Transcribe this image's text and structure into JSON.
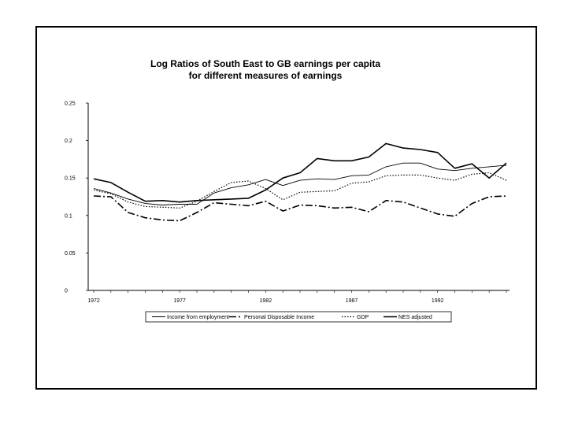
{
  "chart_data": {
    "type": "line",
    "title": [
      "Log Ratios of South East to GB earnings per capita",
      "for different measures of earnings"
    ],
    "xlabel": "",
    "ylabel": "",
    "xlim": [
      1972,
      1996
    ],
    "ylim": [
      0,
      0.25
    ],
    "y_ticks": [
      0,
      0.05,
      0.1,
      0.15,
      0.2,
      0.25
    ],
    "y_tick_labels": [
      "0",
      "0.05",
      "0.1",
      "0.15",
      "0.2",
      "0.25"
    ],
    "x_tick_labels": [
      {
        "value": 1972,
        "label": "1972"
      },
      {
        "value": 1977,
        "label": "1977"
      },
      {
        "value": 1982,
        "label": "1982"
      },
      {
        "value": 1987,
        "label": "1987"
      },
      {
        "value": 1992,
        "label": "1992"
      }
    ],
    "grid": false,
    "legend_position": "bottom",
    "x": [
      1972,
      1973,
      1974,
      1975,
      1976,
      1977,
      1978,
      1979,
      1980,
      1981,
      1982,
      1983,
      1984,
      1985,
      1986,
      1987,
      1988,
      1989,
      1990,
      1991,
      1992,
      1993,
      1994,
      1995,
      1996
    ],
    "series": [
      {
        "name": "Income from employment",
        "dash": "solid-thin",
        "values": [
          0.136,
          0.13,
          0.122,
          0.116,
          0.114,
          0.115,
          0.115,
          0.13,
          0.137,
          0.141,
          0.148,
          0.14,
          0.147,
          0.149,
          0.148,
          0.153,
          0.154,
          0.165,
          0.17,
          0.17,
          0.162,
          0.16,
          0.163,
          0.165,
          0.167
        ]
      },
      {
        "name": "Personal Disposable Income",
        "dash": "dash-dot",
        "values": [
          0.126,
          0.125,
          0.104,
          0.097,
          0.094,
          0.093,
          0.104,
          0.117,
          0.115,
          0.113,
          0.119,
          0.106,
          0.114,
          0.113,
          0.11,
          0.111,
          0.105,
          0.12,
          0.118,
          0.11,
          0.102,
          0.099,
          0.116,
          0.125,
          0.126
        ]
      },
      {
        "name": "GDP",
        "dash": "dotted",
        "values": [
          0.134,
          0.129,
          0.118,
          0.112,
          0.111,
          0.11,
          0.119,
          0.132,
          0.144,
          0.146,
          0.136,
          0.121,
          0.131,
          0.132,
          0.133,
          0.143,
          0.145,
          0.153,
          0.154,
          0.154,
          0.15,
          0.147,
          0.155,
          0.157,
          0.147
        ]
      },
      {
        "name": "NES adjusted",
        "dash": "solid-thick",
        "values": [
          0.149,
          0.144,
          0.131,
          0.119,
          0.12,
          0.118,
          0.12,
          0.121,
          0.122,
          0.123,
          0.134,
          0.15,
          0.157,
          0.176,
          0.173,
          0.173,
          0.178,
          0.196,
          0.19,
          0.188,
          0.184,
          0.163,
          0.169,
          0.15,
          0.17
        ]
      }
    ]
  }
}
